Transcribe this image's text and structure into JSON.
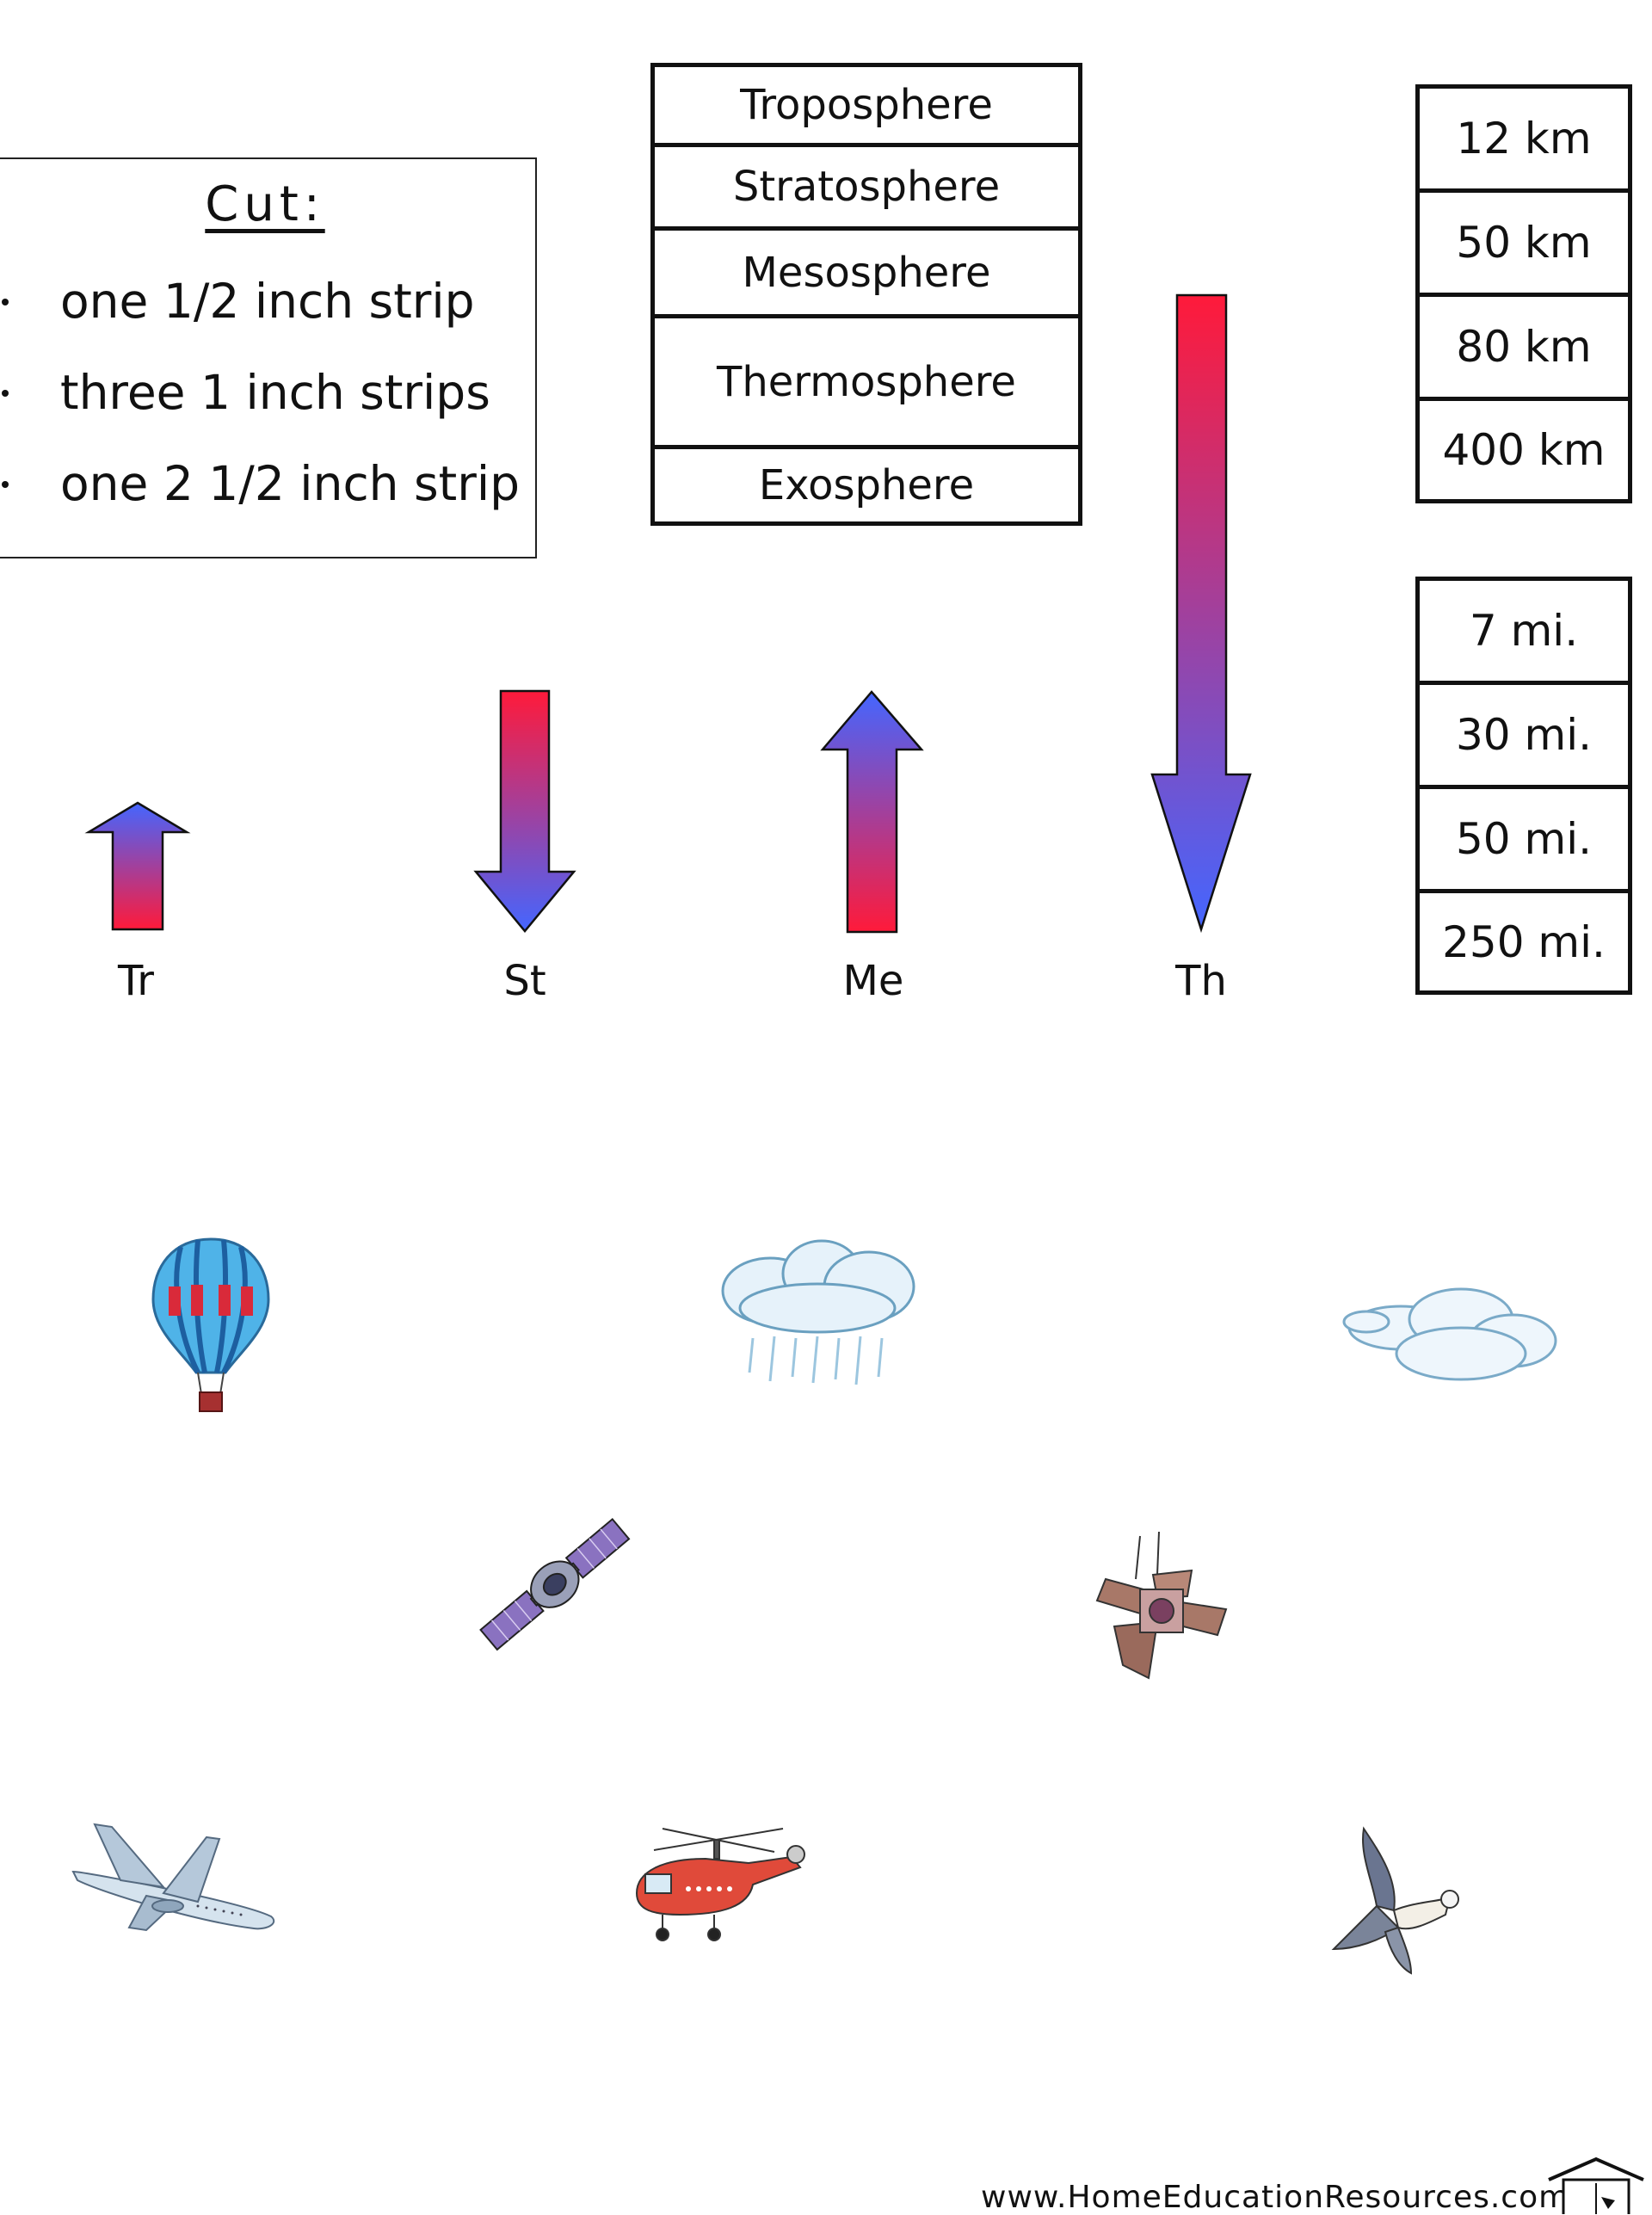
{
  "cut": {
    "title": "Cut:",
    "items": [
      "one 1/2 inch strip",
      "three 1 inch strips",
      "one 2 1/2 inch strip"
    ]
  },
  "layers": [
    "Troposphere",
    "Stratosphere",
    "Mesosphere",
    "Thermosphere",
    "Exosphere"
  ],
  "km": [
    "12 km",
    "50 km",
    "80 km",
    "400 km"
  ],
  "mi": [
    "7 mi.",
    "30 mi.",
    "50 mi.",
    "250 mi."
  ],
  "arrows": [
    {
      "label": "Tr",
      "direction": "up"
    },
    {
      "label": "St",
      "direction": "down"
    },
    {
      "label": "Me",
      "direction": "up"
    },
    {
      "label": "Th",
      "direction": "down"
    }
  ],
  "colors": {
    "warm": "#ff1a3a",
    "cool": "#4466ff"
  },
  "pictures": [
    "hot-air-balloon-icon",
    "rain-cloud-icon",
    "cloud-icon",
    "satellite-icon",
    "space-station-icon",
    "airplane-icon",
    "helicopter-icon",
    "bird-icon"
  ],
  "footer": {
    "url": "www.HomeEducationResources.com"
  }
}
